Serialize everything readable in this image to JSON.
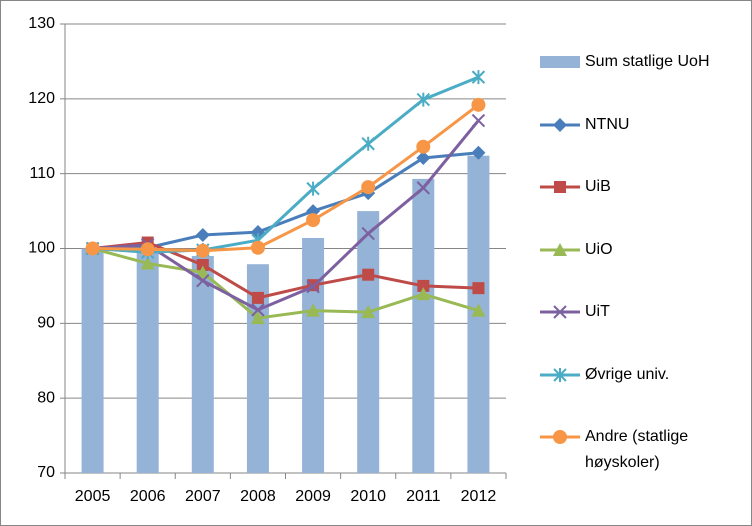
{
  "chart_data": {
    "type": "bar",
    "categories": [
      "2005",
      "2006",
      "2007",
      "2008",
      "2009",
      "2010",
      "2011",
      "2012"
    ],
    "series": [
      {
        "name": "Sum statlige UoH",
        "type": "bar",
        "color": "#95b3d7",
        "values": [
          100,
          99.5,
          99,
          97.9,
          101.4,
          105,
          109.3,
          112.4
        ]
      },
      {
        "name": "NTNU",
        "type": "line",
        "marker": "diamond",
        "color": "#4a7ebb",
        "values": [
          100,
          100.1,
          101.8,
          102.2,
          105,
          107.4,
          112.1,
          112.8
        ]
      },
      {
        "name": "UiB",
        "type": "line",
        "marker": "square",
        "color": "#be4b48",
        "values": [
          100,
          100.8,
          97.8,
          93.4,
          95.1,
          96.5,
          95,
          94.7
        ]
      },
      {
        "name": "UiO",
        "type": "line",
        "marker": "triangle",
        "color": "#98b954",
        "values": [
          100,
          98,
          96.8,
          90.7,
          91.7,
          91.5,
          93.9,
          91.7
        ]
      },
      {
        "name": "UiT",
        "type": "line",
        "marker": "x",
        "color": "#7d60a0",
        "values": [
          100,
          100.5,
          95.7,
          91.8,
          94.9,
          102,
          108.1,
          117.1
        ]
      },
      {
        "name": "Øvrige univ.",
        "type": "line",
        "marker": "star",
        "color": "#4bacc6",
        "values": [
          100,
          99.5,
          99.8,
          101.1,
          108,
          114,
          119.9,
          122.9
        ]
      },
      {
        "name": "Andre (statlige høyskoler)",
        "type": "line",
        "marker": "circle",
        "color": "#f79646",
        "values": [
          100,
          99.9,
          99.7,
          100.1,
          103.8,
          108.2,
          113.6,
          119.2
        ]
      }
    ],
    "ylim": [
      70,
      130
    ],
    "yticks": [
      70,
      80,
      90,
      100,
      110,
      120,
      130
    ],
    "grid": true,
    "legend": "right"
  }
}
